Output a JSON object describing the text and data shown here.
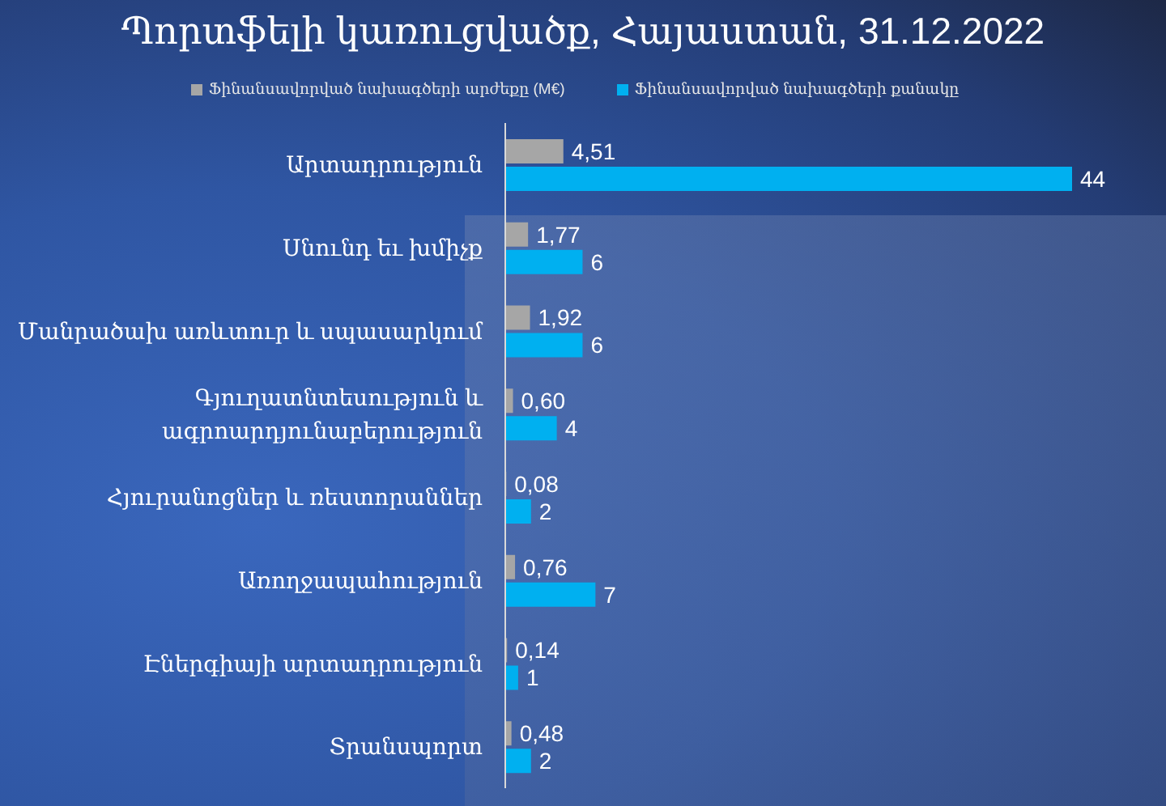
{
  "chart_data": {
    "type": "bar",
    "orientation": "horizontal",
    "title": "Պորտֆելի կառուցվածք, Հայաստան, 31.12.2022",
    "categories": [
      "Արտադրություն",
      "Սնունդ եւ խմիչք",
      "Մանրածախ առևտուր և սպասարկում",
      "Գյուղատնտեսություն և ագրոարդյունաբերություն",
      "Հյուրանոցներ և ռեստորաններ",
      "Առողջապահություն",
      "Էներգիայի արտադրություն",
      "Տրանսպորտ"
    ],
    "series": [
      {
        "name": "Ֆինանսավորված նախագծերի արժեքը (M€)",
        "color": "#a6a6a6",
        "values": [
          4.51,
          1.77,
          1.92,
          0.6,
          0.08,
          0.76,
          0.14,
          0.48
        ],
        "value_labels": [
          "4,51",
          "1,77",
          "1,92",
          "0,60",
          "0,08",
          "0,76",
          "0,14",
          "0,48"
        ]
      },
      {
        "name": "Ֆինանսավորված նախագծերի քանակը",
        "color": "#00b0f0",
        "values": [
          44,
          6,
          6,
          4,
          2,
          7,
          1,
          2
        ],
        "value_labels": [
          "44",
          "6",
          "6",
          "4",
          "2",
          "7",
          "1",
          "2"
        ]
      }
    ],
    "legend": "top",
    "tick_labels": "y"
  }
}
